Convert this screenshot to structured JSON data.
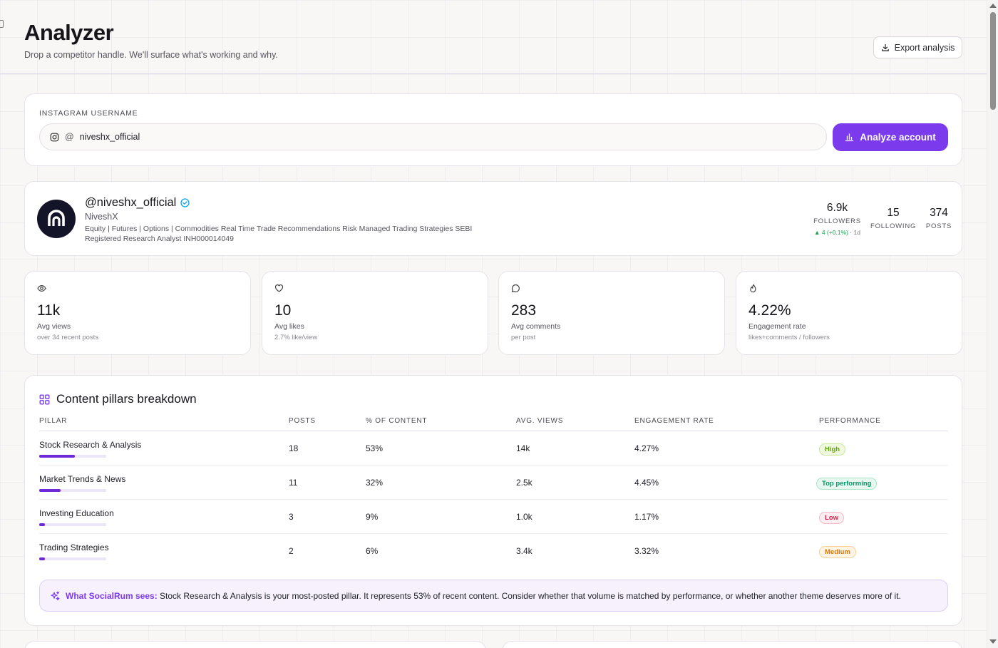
{
  "header": {
    "title": "Analyzer",
    "subtitle": "Drop a competitor handle. We'll surface what's working and why.",
    "export_label": "Export analysis"
  },
  "search": {
    "label": "INSTAGRAM USERNAME",
    "prefix": "@",
    "value": "niveshx_official",
    "button_label": "Analyze account"
  },
  "profile": {
    "handle": "@niveshx_official",
    "name": "NiveshX",
    "bio": "Equity | Futures | Options | Commodities Real Time Trade Recommendations Risk Managed Trading Strategies SEBI Registered Research Analyst INH000014049",
    "followers": "6.9k",
    "followers_label": "FOLLOWERS",
    "followers_delta": "▲ 4 (+0.1%)",
    "followers_delta_ago": "· 1d",
    "following": "15",
    "following_label": "FOLLOWING",
    "posts": "374",
    "posts_label": "POSTS"
  },
  "metrics": [
    {
      "icon": "eye-icon",
      "value": "11k",
      "label": "Avg views",
      "sub": "over 34 recent posts"
    },
    {
      "icon": "heart-icon",
      "value": "10",
      "label": "Avg likes",
      "sub": "2.7% like/view"
    },
    {
      "icon": "comment-icon",
      "value": "283",
      "label": "Avg comments",
      "sub": "per post"
    },
    {
      "icon": "flame-icon",
      "value": "4.22%",
      "label": "Engagement rate",
      "sub": "likes+comments / followers"
    }
  ],
  "pillars": {
    "title": "Content pillars breakdown",
    "columns": [
      "PILLAR",
      "POSTS",
      "% OF CONTENT",
      "AVG. VIEWS",
      "ENGAGEMENT RATE",
      "PERFORMANCE"
    ],
    "rows": [
      {
        "name": "Stock Research & Analysis",
        "posts": "18",
        "pct": "53%",
        "share": 0.53,
        "views": "14k",
        "er": "4.27%",
        "perf": "High"
      },
      {
        "name": "Market Trends & News",
        "posts": "11",
        "pct": "32%",
        "share": 0.32,
        "views": "2.5k",
        "er": "4.45%",
        "perf": "Top performing"
      },
      {
        "name": "Investing Education",
        "posts": "3",
        "pct": "9%",
        "share": 0.09,
        "views": "1.0k",
        "er": "1.17%",
        "perf": "Low"
      },
      {
        "name": "Trading Strategies",
        "posts": "2",
        "pct": "6%",
        "share": 0.06,
        "views": "3.4k",
        "er": "3.32%",
        "perf": "Medium"
      }
    ],
    "insight_lead": "What SocialRum sees:",
    "insight_text": "Stock Research & Analysis is your most-posted pillar. It represents 53% of recent content. Consider whether that volume is matched by performance, or whether another theme deserves more of it."
  },
  "colors": {
    "accent": "#7c3aed",
    "high": "#65a30d",
    "top": "#059669",
    "low": "#e11d48",
    "medium": "#d97706"
  }
}
